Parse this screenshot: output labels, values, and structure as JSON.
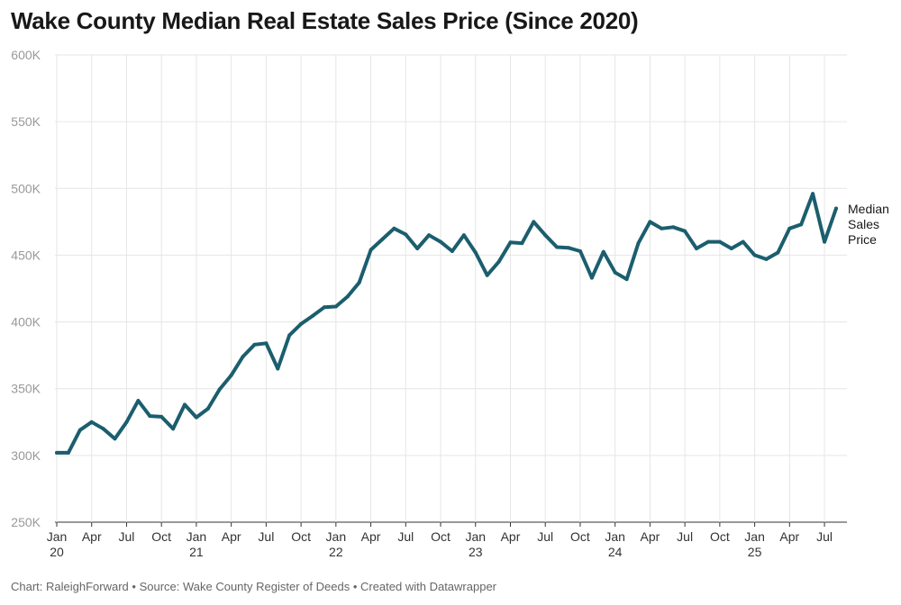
{
  "title": "Wake County Median Real Estate Sales Price (Since 2020)",
  "footer": {
    "credit": "Chart: RaleighForward",
    "sep1": " • ",
    "source": "Source: Wake County Register of Deeds",
    "sep2": " • ",
    "tool": "Created with Datawrapper"
  },
  "legend": {
    "line1": "Median",
    "line2": "Sales",
    "line3": "Price"
  },
  "colors": {
    "line": "#1b5e6e",
    "grid": "#e6e6e6",
    "tick_text": "#999999",
    "axis_text": "#333333"
  },
  "chart_data": {
    "type": "line",
    "title": "Wake County Median Real Estate Sales Price (Since 2020)",
    "xlabel": "",
    "ylabel": "",
    "ylim": [
      250000,
      600000
    ],
    "y_ticks": [
      250000,
      300000,
      350000,
      400000,
      450000,
      500000,
      550000,
      600000
    ],
    "y_tick_labels": [
      "250K",
      "300K",
      "350K",
      "400K",
      "450K",
      "500K",
      "550K",
      "600K"
    ],
    "x_tick_labels": [
      {
        "month": "Jan",
        "year": "20"
      },
      {
        "month": "Apr",
        "year": ""
      },
      {
        "month": "Jul",
        "year": ""
      },
      {
        "month": "Oct",
        "year": ""
      },
      {
        "month": "Jan",
        "year": "21"
      },
      {
        "month": "Apr",
        "year": ""
      },
      {
        "month": "Jul",
        "year": ""
      },
      {
        "month": "Oct",
        "year": ""
      },
      {
        "month": "Jan",
        "year": "22"
      },
      {
        "month": "Apr",
        "year": ""
      },
      {
        "month": "Jul",
        "year": ""
      },
      {
        "month": "Oct",
        "year": ""
      },
      {
        "month": "Jan",
        "year": "23"
      },
      {
        "month": "Apr",
        "year": ""
      },
      {
        "month": "Jul",
        "year": ""
      },
      {
        "month": "Oct",
        "year": ""
      },
      {
        "month": "Jan",
        "year": "24"
      },
      {
        "month": "Apr",
        "year": ""
      },
      {
        "month": "Jul",
        "year": ""
      },
      {
        "month": "Oct",
        "year": ""
      },
      {
        "month": "Jan",
        "year": "25"
      },
      {
        "month": "Apr",
        "year": ""
      },
      {
        "month": "Jul",
        "year": ""
      }
    ],
    "grid": true,
    "legend_position": "right",
    "x": [
      "2020-01",
      "2020-02",
      "2020-03",
      "2020-04",
      "2020-05",
      "2020-06",
      "2020-07",
      "2020-08",
      "2020-09",
      "2020-10",
      "2020-11",
      "2020-12",
      "2021-01",
      "2021-02",
      "2021-03",
      "2021-04",
      "2021-05",
      "2021-06",
      "2021-07",
      "2021-08",
      "2021-09",
      "2021-10",
      "2021-11",
      "2021-12",
      "2022-01",
      "2022-02",
      "2022-03",
      "2022-04",
      "2022-05",
      "2022-06",
      "2022-07",
      "2022-08",
      "2022-09",
      "2022-10",
      "2022-11",
      "2022-12",
      "2023-01",
      "2023-02",
      "2023-03",
      "2023-04",
      "2023-05",
      "2023-06",
      "2023-07",
      "2023-08",
      "2023-09",
      "2023-10",
      "2023-11",
      "2023-12",
      "2024-01",
      "2024-02",
      "2024-03",
      "2024-04",
      "2024-05",
      "2024-06",
      "2024-07",
      "2024-08",
      "2024-09",
      "2024-10",
      "2024-11",
      "2024-12",
      "2025-01",
      "2025-02",
      "2025-03",
      "2025-04",
      "2025-05",
      "2025-06",
      "2025-07",
      "2025-08"
    ],
    "series": [
      {
        "name": "Median Sales Price",
        "values": [
          302000,
          302000,
          319000,
          325000,
          320000,
          312500,
          325000,
          341000,
          329500,
          329000,
          320000,
          338000,
          328500,
          335000,
          349500,
          360000,
          374000,
          383000,
          384000,
          365000,
          390000,
          398500,
          404500,
          411000,
          411500,
          419000,
          429500,
          454000,
          462000,
          470000,
          465500,
          455000,
          465000,
          460000,
          453000,
          465000,
          452000,
          435000,
          445000,
          459500,
          459000,
          475000,
          465000,
          456000,
          455500,
          453000,
          433000,
          452500,
          437000,
          432000,
          459000,
          475000,
          470000,
          471000,
          468000,
          455000,
          460000,
          460000,
          455000,
          460000,
          450000,
          447000,
          452000,
          470000,
          473000,
          496000,
          460000,
          485000
        ]
      }
    ]
  }
}
